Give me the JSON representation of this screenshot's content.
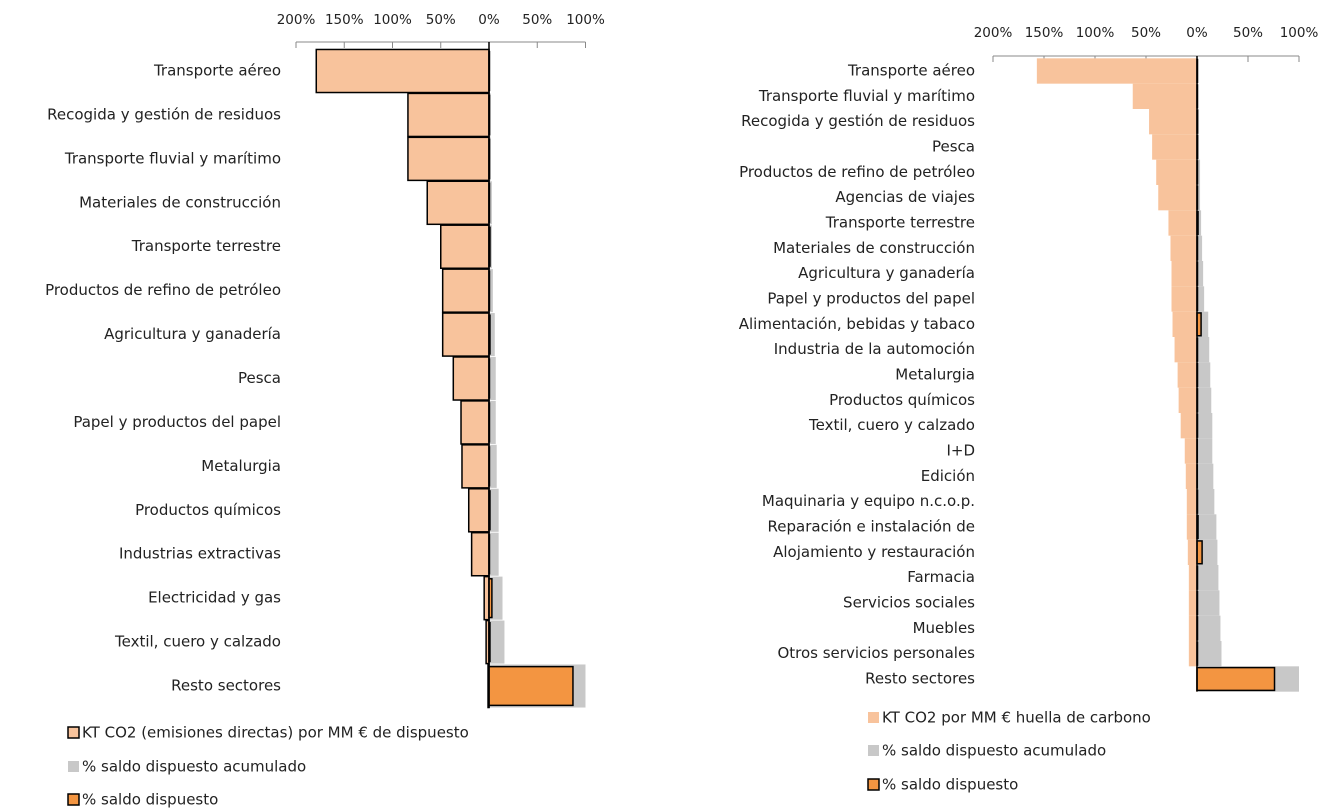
{
  "chart_data": [
    {
      "type": "bar",
      "orientation": "horizontal",
      "categories": [
        "Transporte aéreo",
        "Recogida y gestión de residuos",
        "Transporte fluvial y marítimo",
        "Materiales de construcción",
        "Transporte terrestre",
        "Productos de refino de petróleo",
        "Agricultura y ganadería",
        "Pesca",
        "Papel y productos del papel",
        "Metalurgia",
        "Productos químicos",
        "Industrias extractivas",
        "Electricidad y gas",
        "Textil, cuero y calzado",
        "Resto sectores"
      ],
      "series": [
        {
          "name": "KT CO2 (emisiones directas) por MM € de dispuesto",
          "color": "#f8c39c",
          "edgecolor": "#000000",
          "values": [
            -179,
            -84,
            -84,
            -64,
            -50,
            -48,
            -48,
            -37,
            -29,
            -28,
            -21,
            -18,
            -5,
            -3,
            -1
          ]
        },
        {
          "name": "% saldo dispuesto acumulado",
          "color": "#c8c8c8",
          "values": [
            1,
            2,
            2,
            3,
            3,
            4,
            6,
            7,
            7,
            8,
            10,
            10,
            14,
            16,
            100
          ]
        },
        {
          "name": "% saldo dispuesto",
          "color": "#f39541",
          "edgecolor": "#000000",
          "values": [
            0.5,
            0.5,
            0.5,
            0.5,
            1,
            0.5,
            1,
            0.5,
            0.5,
            0.5,
            1,
            0.5,
            3,
            1,
            87
          ]
        }
      ],
      "xlim": [
        -200,
        100
      ],
      "xticks": [
        {
          "value": -200,
          "label": "200%"
        },
        {
          "value": -150,
          "label": "150%"
        },
        {
          "value": -100,
          "label": "100%"
        },
        {
          "value": -50,
          "label": "50%"
        },
        {
          "value": 0,
          "label": "0%"
        },
        {
          "value": 50,
          "label": "50%"
        },
        {
          "value": 100,
          "label": "100%"
        }
      ]
    },
    {
      "type": "bar",
      "orientation": "horizontal",
      "categories": [
        "Transporte aéreo",
        "Transporte fluvial y marítimo",
        "Recogida y gestión de residuos",
        "Pesca",
        "Productos de refino de petróleo",
        "Agencias de viajes",
        "Transporte terrestre",
        "Materiales de construcción",
        "Agricultura y ganadería",
        "Papel y productos del papel",
        "Alimentación, bebidas y tabaco",
        "Industria de la automoción",
        "Metalurgia",
        "Productos químicos",
        "Textil, cuero y calzado",
        "I+D",
        "Edición",
        "Maquinaria y equipo n.c.o.p.",
        "Reparación e instalación de",
        "Alojamiento y restauración",
        "Farmacia",
        "Servicios sociales",
        "Muebles",
        "Otros servicios personales",
        "Resto sectores"
      ],
      "series": [
        {
          "name": "KT CO2 por MM € huella de carbono",
          "color": "#f8c39c",
          "values": [
            -157,
            -63,
            -47,
            -44,
            -40,
            -38,
            -28,
            -26,
            -25,
            -25,
            -24,
            -22,
            -19,
            -18,
            -16,
            -12,
            -11,
            -10,
            -10,
            -9,
            -8,
            -8,
            -8,
            -8,
            -1
          ]
        },
        {
          "name": "% saldo dispuesto acumulado",
          "color": "#c8c8c8",
          "values": [
            1,
            1,
            2,
            2,
            3,
            3,
            4,
            5,
            6,
            7,
            11,
            12,
            13,
            14,
            15,
            15,
            16,
            17,
            19,
            20,
            21,
            22,
            23,
            24,
            100
          ]
        },
        {
          "name": "% saldo dispuesto",
          "color": "#f39541",
          "edgecolor": "#000000",
          "values": [
            0.5,
            0.5,
            0.5,
            0.5,
            0.5,
            0.5,
            1,
            0.5,
            0.5,
            0.5,
            4,
            0.5,
            0.5,
            0.5,
            0.5,
            0.3,
            0.3,
            0.5,
            1,
            5,
            0.5,
            0.5,
            0.5,
            0.5,
            76
          ]
        }
      ],
      "xlim": [
        -200,
        100
      ],
      "xticks": [
        {
          "value": -200,
          "label": "200%"
        },
        {
          "value": -150,
          "label": "150%"
        },
        {
          "value": -100,
          "label": "100%"
        },
        {
          "value": -50,
          "label": "50%"
        },
        {
          "value": 0,
          "label": "0%"
        },
        {
          "value": 50,
          "label": "50%"
        },
        {
          "value": 100,
          "label": "100%"
        }
      ]
    }
  ]
}
